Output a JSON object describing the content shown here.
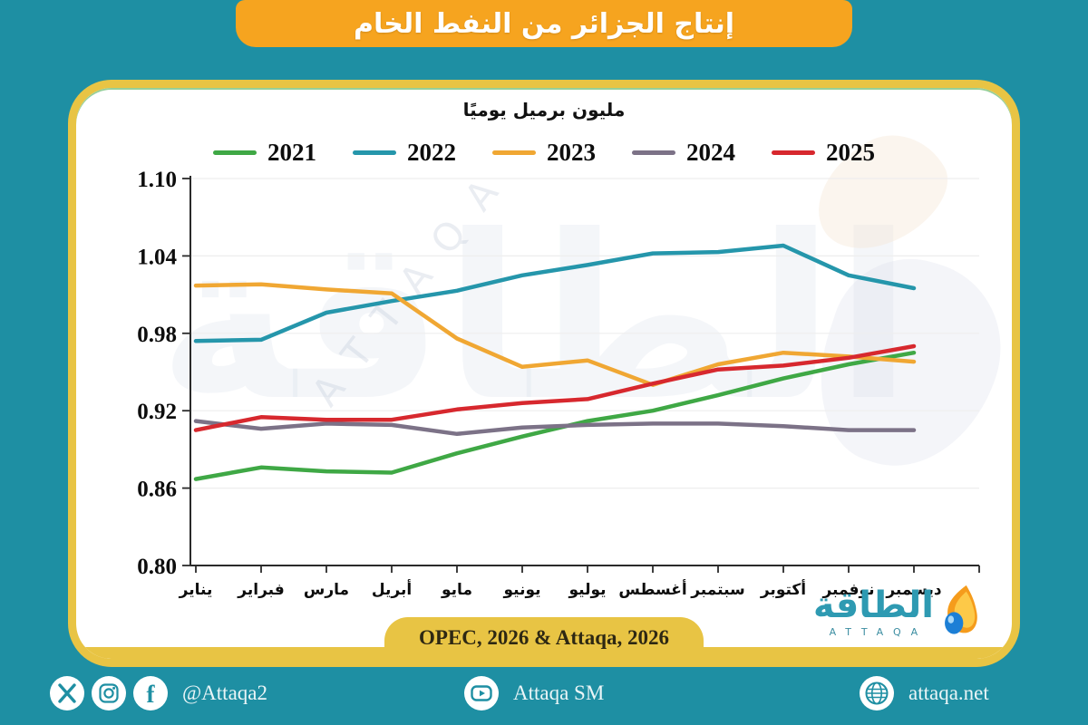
{
  "banner": {
    "title": "إنتاج الجزائر من النفط الخام"
  },
  "chart_data": {
    "type": "line",
    "title": "إنتاج الجزائر من النفط الخام",
    "subtitle": "مليون برميل يوميًا",
    "categories": [
      "يناير",
      "فبراير",
      "مارس",
      "أبريل",
      "مايو",
      "يونيو",
      "يوليو",
      "أغسطس",
      "سبتمبر",
      "أكتوبر",
      "نوفمبر",
      "ديسمبر"
    ],
    "series": [
      {
        "name": "2021",
        "color": "#3fa845",
        "values": [
          0.867,
          0.876,
          0.873,
          0.872,
          0.887,
          0.9,
          0.912,
          0.92,
          0.932,
          0.945,
          0.956,
          0.965
        ]
      },
      {
        "name": "2022",
        "color": "#2596ab",
        "values": [
          0.974,
          0.975,
          0.996,
          1.005,
          1.013,
          1.025,
          1.033,
          1.042,
          1.043,
          1.048,
          1.025,
          1.015
        ]
      },
      {
        "name": "2023",
        "color": "#f0a733",
        "values": [
          1.017,
          1.018,
          1.014,
          1.011,
          0.976,
          0.954,
          0.959,
          0.94,
          0.956,
          0.965,
          0.962,
          0.958
        ]
      },
      {
        "name": "2024",
        "color": "#7c7287",
        "values": [
          0.912,
          0.906,
          0.91,
          0.909,
          0.902,
          0.907,
          0.909,
          0.91,
          0.91,
          0.908,
          0.905,
          0.905
        ]
      },
      {
        "name": "2025",
        "color": "#d7282e",
        "values": [
          0.905,
          0.915,
          0.913,
          0.913,
          0.921,
          0.926,
          0.929,
          0.941,
          0.952,
          0.955,
          0.961,
          0.97
        ]
      }
    ],
    "ylim": [
      0.8,
      1.1
    ],
    "yticks": [
      0.8,
      0.86,
      0.92,
      0.98,
      1.04,
      1.1
    ],
    "xlabel": "",
    "ylabel": "مليون برميل يوميًا",
    "grid": true,
    "legend_position": "top"
  },
  "watermark": {
    "arabic": "الطاقة",
    "latin": "ATTAQA"
  },
  "source_badge": {
    "label": "OPEC, 2026 & Attaqa, 2026"
  },
  "logo": {
    "arabic": "الطاقة",
    "latin": "ATTAQA"
  },
  "footer": {
    "social_handle": "@Attaqa2",
    "youtube_label": "Attaqa SM",
    "website": "attaqa.net",
    "icons": [
      "x-icon",
      "instagram-icon",
      "facebook-icon",
      "youtube-icon",
      "globe-icon"
    ]
  },
  "colors": {
    "background": "#1e8fa3",
    "banner": "#f6a41f",
    "card_border": "#e8c444",
    "axis": "#2a2a2a",
    "gridline": "#eeeeee",
    "logo_teal": "#2e9ab2"
  }
}
